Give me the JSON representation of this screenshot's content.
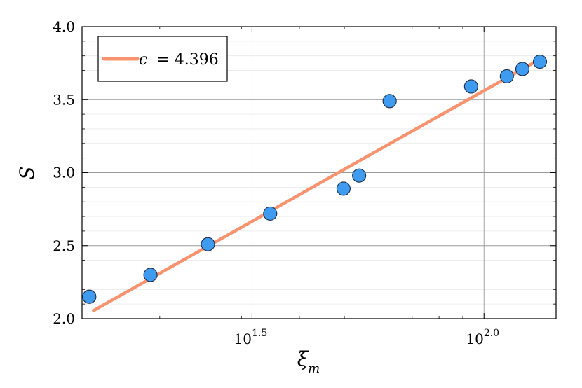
{
  "chart_data": {
    "type": "scatter",
    "xscale": "log10",
    "xlabel": "ξ_m",
    "xlabel_main": "ξ",
    "xlabel_sub": "m",
    "ylabel": "S",
    "xlim": [
      13.6,
      143.0
    ],
    "ylim": [
      2.0,
      4.0
    ],
    "grid": true,
    "legend_position": "top-left",
    "x_ticks": [
      {
        "value": 31.62,
        "base": "10",
        "exp": "1.5"
      },
      {
        "value": 100.0,
        "base": "10",
        "exp": "2.0"
      }
    ],
    "y_ticks": [
      {
        "value": 2.0,
        "label": "2.0"
      },
      {
        "value": 2.5,
        "label": "2.5"
      },
      {
        "value": 3.0,
        "label": "3.0"
      },
      {
        "value": 3.5,
        "label": "3.5"
      },
      {
        "value": 4.0,
        "label": "4.0"
      }
    ],
    "series": [
      {
        "kind": "points",
        "color": "#3e9bf0",
        "points": [
          {
            "x": 14.1,
            "y": 2.15
          },
          {
            "x": 19.1,
            "y": 2.3
          },
          {
            "x": 25.4,
            "y": 2.51
          },
          {
            "x": 34.6,
            "y": 2.72
          },
          {
            "x": 49.8,
            "y": 2.89
          },
          {
            "x": 53.8,
            "y": 2.98
          },
          {
            "x": 62.6,
            "y": 3.49
          },
          {
            "x": 93.8,
            "y": 3.59
          },
          {
            "x": 112.0,
            "y": 3.66
          },
          {
            "x": 121.0,
            "y": 3.71
          },
          {
            "x": 132.0,
            "y": 3.76
          }
        ]
      },
      {
        "kind": "fit",
        "name": "c = 4.396",
        "color": "#f9936f",
        "points": [
          {
            "x": 14.3,
            "y": 2.05
          },
          {
            "x": 132.5,
            "y": 3.78
          }
        ]
      }
    ]
  },
  "legend": {
    "lhs": "c",
    "rhs": "= 4.396"
  }
}
